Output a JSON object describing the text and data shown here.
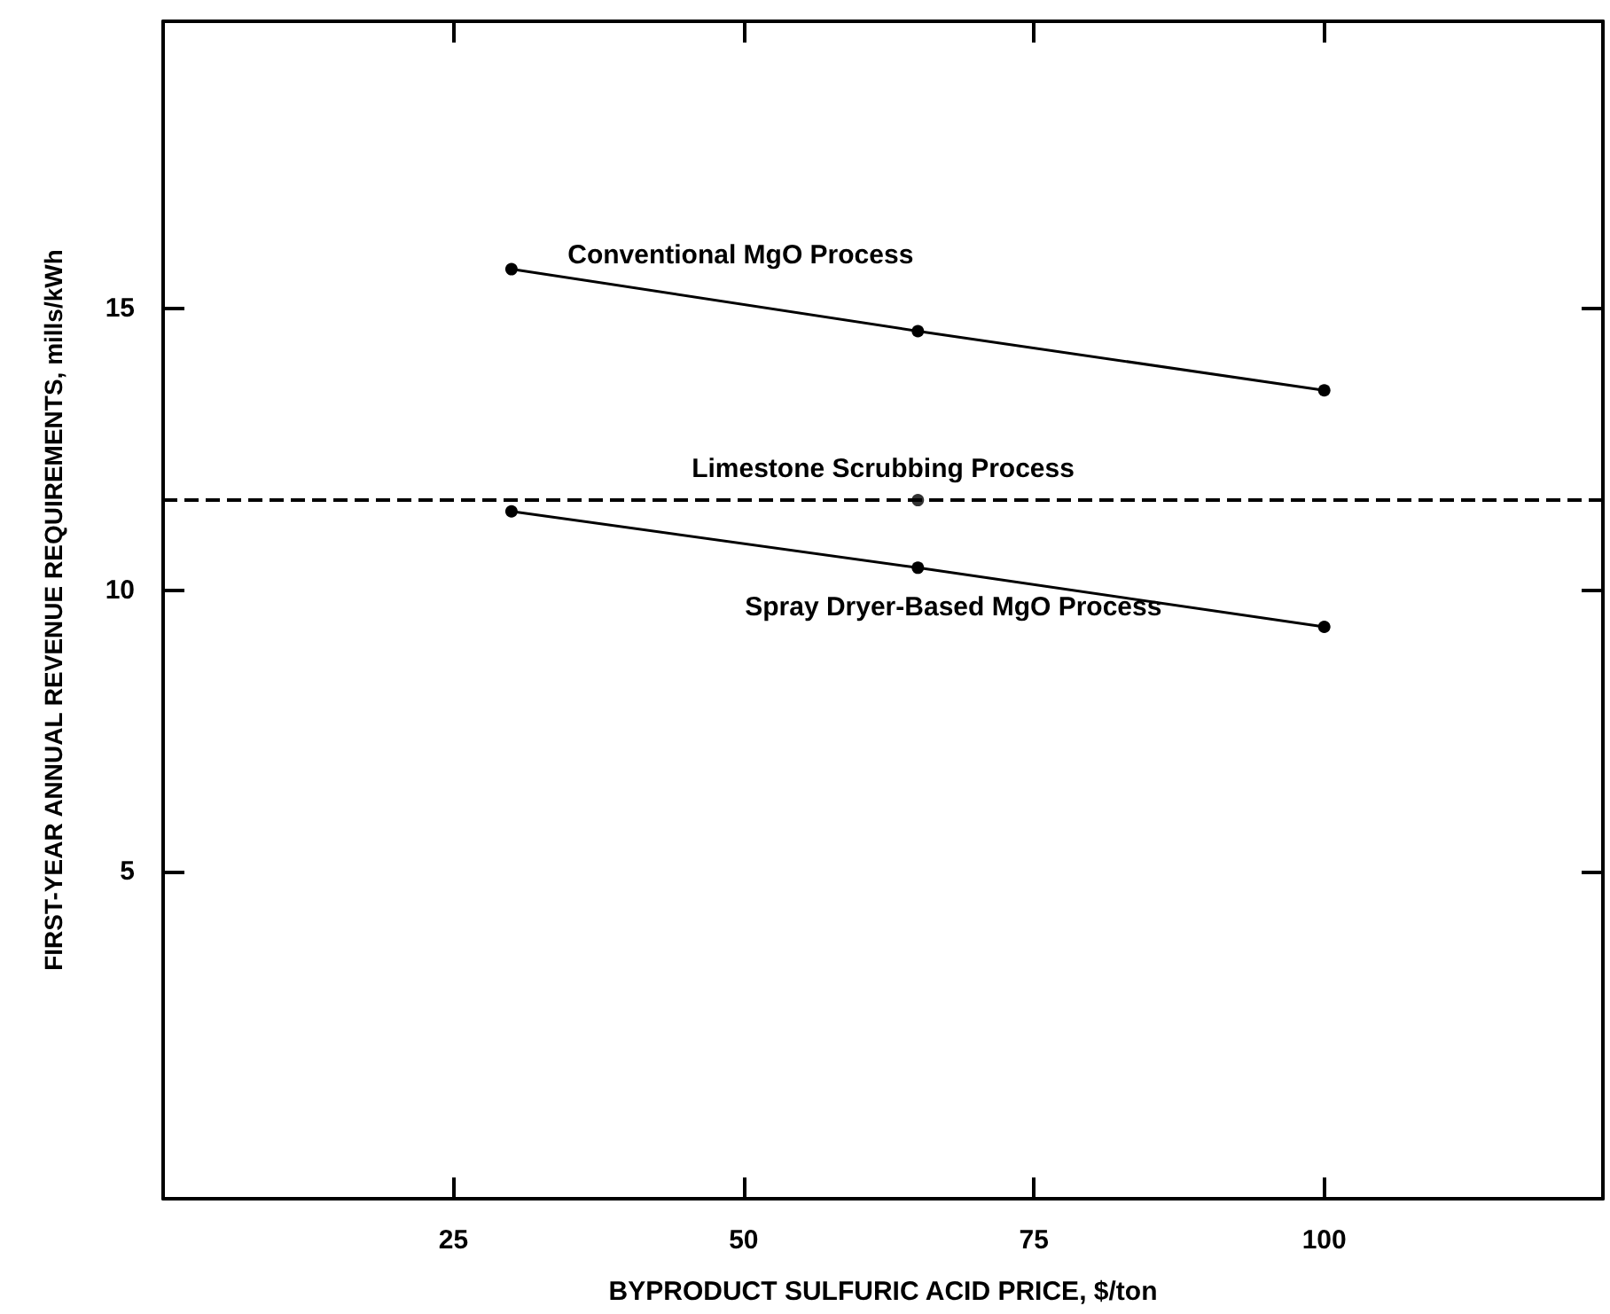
{
  "chart_data": {
    "type": "line",
    "xlabel": "BYPRODUCT SULFURIC ACID PRICE, $/ton",
    "ylabel": "FIRST-YEAR ANNUAL REVENUE REQUIREMENTS, mills/kWh",
    "x": [
      30,
      65,
      100
    ],
    "series": [
      {
        "name": "Conventional MgO Process",
        "color": "#000000",
        "values": [
          15.7,
          14.6,
          13.55
        ]
      },
      {
        "name": "Spray Dryer-Based MgO Process",
        "color": "#000000",
        "values": [
          11.4,
          10.4,
          9.35
        ]
      },
      {
        "type": "scatter",
        "color": "#000000",
        "x": [
          65
        ],
        "values": [
          11.6
        ]
      }
    ],
    "ref_lines": [
      {
        "axis": "y",
        "value": 11.6,
        "label": "Limestone Scrubbing Process",
        "color": "#000000",
        "line_style": "dashed"
      }
    ],
    "xlim": [
      0,
      124
    ],
    "xticks": [
      25,
      50,
      75,
      100
    ],
    "ylim": [
      -0.8,
      20.1
    ],
    "yticks": [
      5,
      10,
      15
    ],
    "grid": false,
    "legend": false,
    "marker": "circle",
    "line_style": "solid"
  }
}
